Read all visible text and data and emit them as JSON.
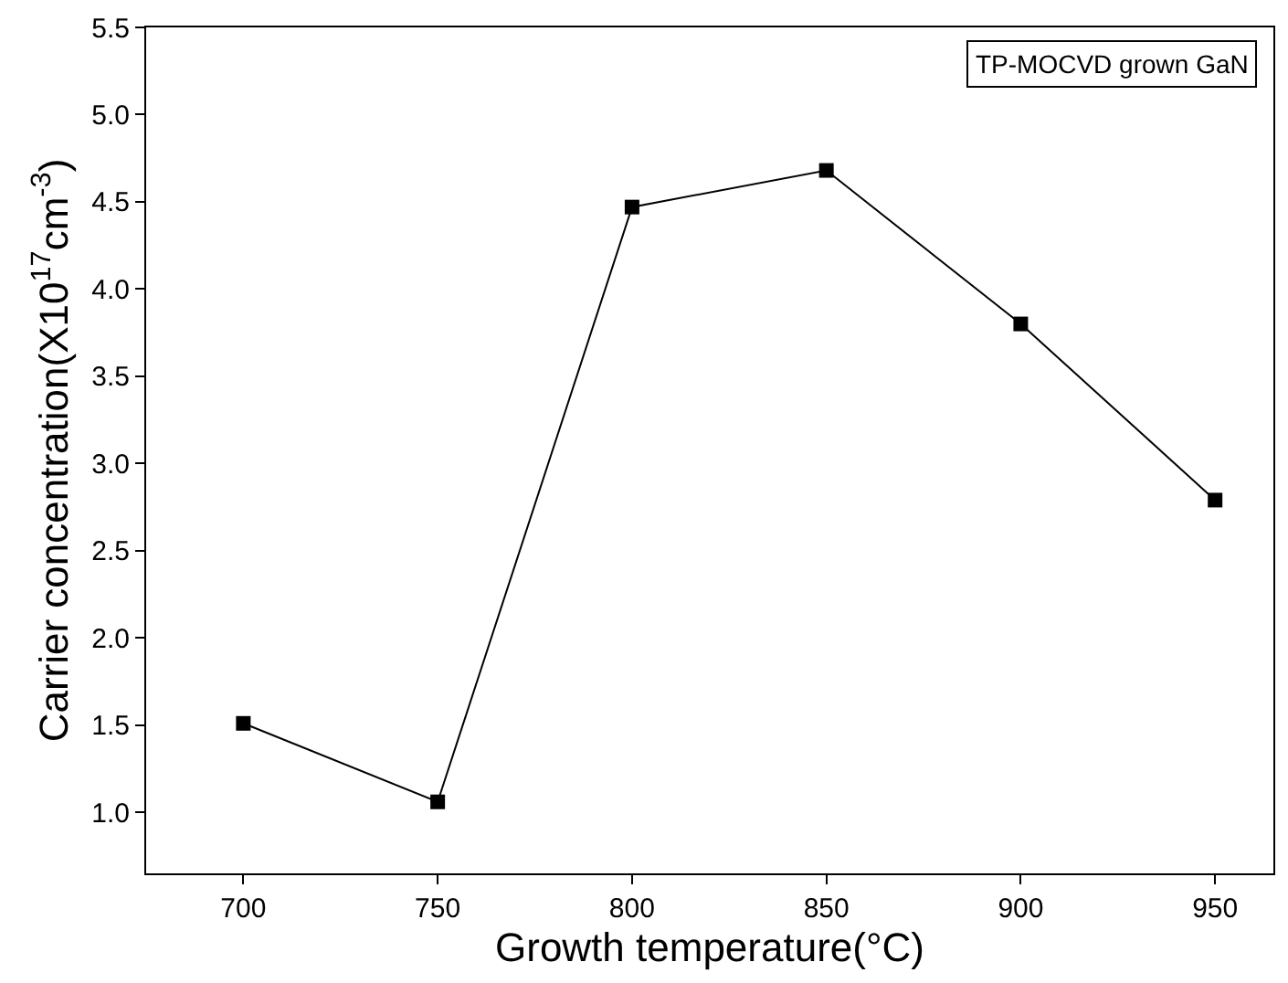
{
  "chart_data": {
    "type": "line",
    "xlabel": "Growth temperature(°C)",
    "ylabel": "Carrier concentration(X10$^{17}$cm$^{-3}$)",
    "x": [
      700,
      750,
      800,
      850,
      900,
      950
    ],
    "series": [
      {
        "color": "#000000",
        "values": [
          1.51,
          1.06,
          4.47,
          4.68,
          3.8,
          2.79
        ]
      }
    ],
    "marker": "square",
    "line_style": "solid",
    "xlim": [
      675,
      965
    ],
    "xticks": [
      700,
      750,
      800,
      850,
      900,
      950
    ],
    "ylim": [
      0.65,
      5.5
    ],
    "yticks": [
      {
        "value": 1.0,
        "label": "1.0"
      },
      {
        "value": 1.5,
        "label": "1.5"
      },
      {
        "value": 2.0,
        "label": "2.0"
      },
      {
        "value": 2.5,
        "label": "2.5"
      },
      {
        "value": 3.0,
        "label": "3.0"
      },
      {
        "value": 3.5,
        "label": "3.5"
      },
      {
        "value": 4.0,
        "label": "4.0"
      },
      {
        "value": 4.5,
        "label": "4.5"
      },
      {
        "value": 5.0,
        "label": "5.0"
      },
      {
        "value": 5.5,
        "label": "5.5"
      }
    ],
    "annotations": [
      "TP-MOCVD grown GaN"
    ]
  }
}
